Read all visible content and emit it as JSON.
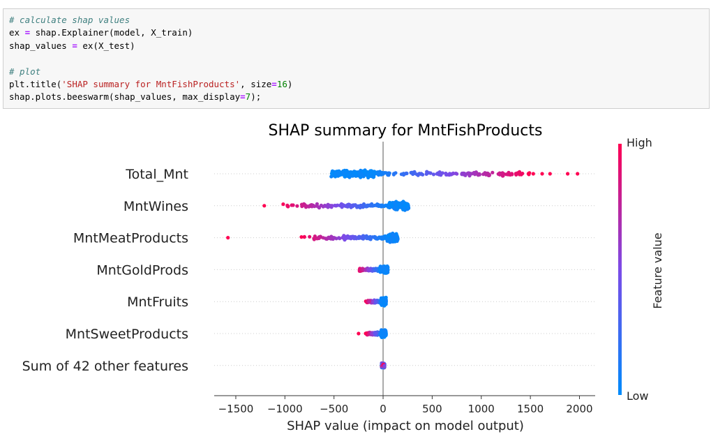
{
  "code_cell": {
    "line1_comment": "# calculate shap values",
    "line2_a": "ex ",
    "line2_op": "=",
    "line2_b": " shap.Explainer(model, X_train)",
    "line3_a": "shap_values ",
    "line3_op": "=",
    "line3_b": " ex(X_test)",
    "line5_comment": "# plot",
    "line6_a": "plt.title(",
    "line6_str": "'SHAP summary for MntFishProducts'",
    "line6_b": ", size",
    "line6_op": "=",
    "line6_num": "16",
    "line6_c": ")",
    "line7_a": "shap.plots.beeswarm(shap_values, max_display",
    "line7_op": "=",
    "line7_num": "7",
    "line7_c": ");"
  },
  "chart_data": {
    "type": "scatter",
    "subtype": "beeswarm",
    "title": "SHAP summary for MntFishProducts",
    "xlabel": "SHAP value (impact on model output)",
    "xlim": [
      -1720,
      2160
    ],
    "xticks": [
      -1500,
      -1000,
      -500,
      0,
      500,
      1000,
      1500,
      2000
    ],
    "xtick_labels": [
      "−1500",
      "−1000",
      "−500",
      "0",
      "500",
      "1000",
      "1500",
      "2000"
    ],
    "colorbar": {
      "label": "Feature value",
      "high_label": "High",
      "low_label": "Low",
      "low_color": "#008bfb",
      "high_color": "#ff0052"
    },
    "features": [
      {
        "name": "Total_Mnt",
        "dense": [
          -530,
          -80,
          2,
          6.5
        ],
        "spread": [
          -60,
          1500,
          0,
          3.5
        ],
        "outliers": [
          [
            1480,
            1
          ],
          [
            1530,
            1
          ],
          [
            1620,
            1
          ],
          [
            1700,
            1
          ],
          [
            1880,
            1
          ],
          [
            1980,
            1
          ]
        ],
        "color_mode": "pos"
      },
      {
        "name": "MntWines",
        "dense": [
          60,
          260,
          1,
          7
        ],
        "spread": [
          -1050,
          100,
          0.6,
          3.5
        ],
        "outliers": [
          [
            -1210,
            1
          ]
        ],
        "color_mode": "neg"
      },
      {
        "name": "MntMeatProducts",
        "dense": [
          40,
          150,
          1,
          7
        ],
        "spread": [
          -840,
          60,
          0.7,
          3.5
        ],
        "outliers": [
          [
            -1580,
            1
          ]
        ],
        "color_mode": "neg"
      },
      {
        "name": "MntGoldProds",
        "dense": [
          -30,
          50,
          1,
          6.5
        ],
        "spread": [
          -260,
          -20,
          0.8,
          2.5
        ],
        "outliers": [],
        "color_mode": "neg"
      },
      {
        "name": "MntFruits",
        "dense": [
          -20,
          30,
          1,
          6.5
        ],
        "spread": [
          -180,
          -10,
          0.85,
          2.5
        ],
        "outliers": [],
        "color_mode": "neg"
      },
      {
        "name": "MntSweetProducts",
        "dense": [
          -20,
          30,
          1,
          6.5
        ],
        "spread": [
          -180,
          -10,
          0.85,
          2.5
        ],
        "outliers": [
          [
            -250,
            1
          ]
        ],
        "color_mode": "neg"
      },
      {
        "name": "Sum of 42 other features",
        "dense": [
          -15,
          15,
          0,
          4.5
        ],
        "spread": [
          -15,
          15,
          0,
          0
        ],
        "outliers": [],
        "color_mode": "mix"
      }
    ]
  }
}
